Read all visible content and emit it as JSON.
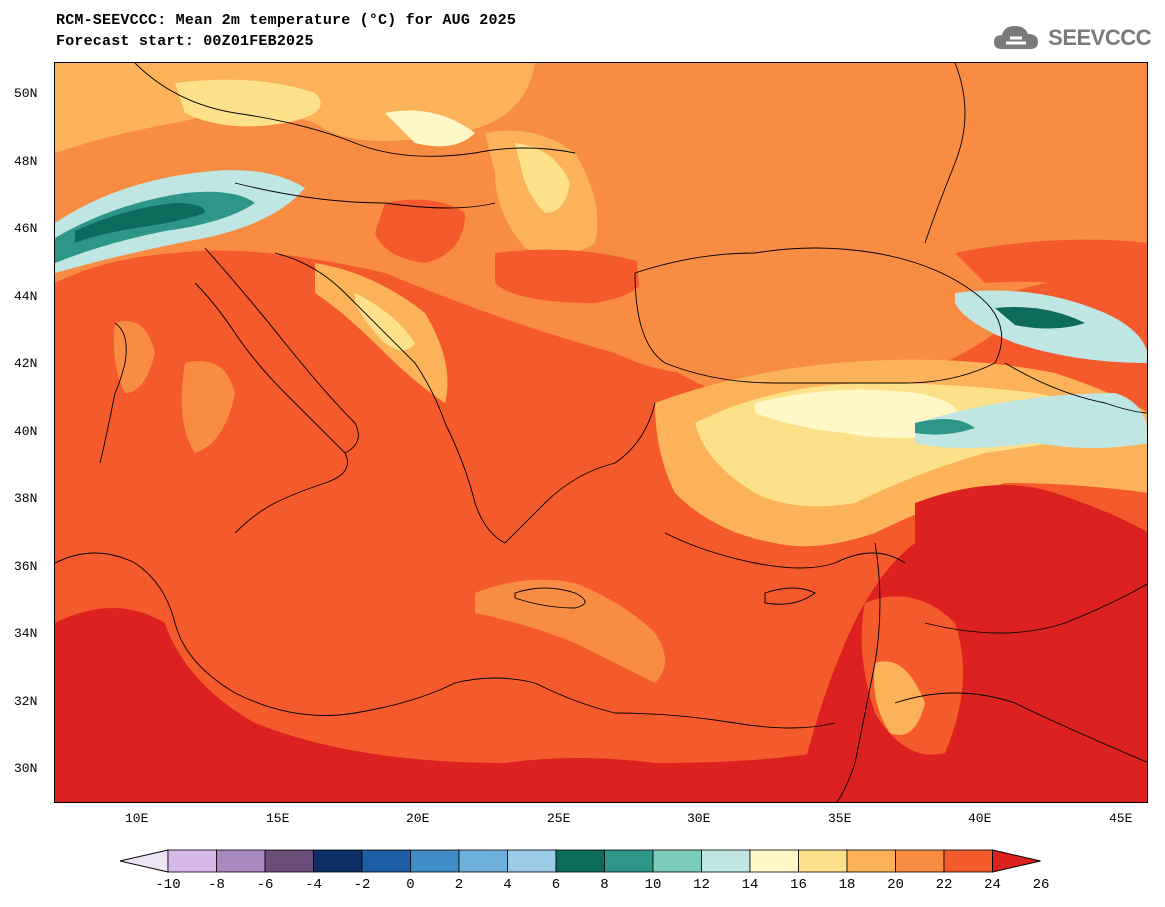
{
  "header": {
    "title_line1": "RCM-SEEVCCC: Mean 2m temperature (°C) for AUG 2025",
    "title_line2": "Forecast start: 00Z01FEB2025",
    "logo_text": "SEEVCCC"
  },
  "map": {
    "lat_labels": [
      "50N",
      "48N",
      "46N",
      "44N",
      "42N",
      "40N",
      "38N",
      "36N",
      "34N",
      "32N",
      "30N"
    ],
    "lon_labels": [
      "10E",
      "15E",
      "20E",
      "25E",
      "30E",
      "35E",
      "40E",
      "45E"
    ]
  },
  "colorbar": {
    "tick_labels": [
      "-10",
      "-8",
      "-6",
      "-4",
      "-2",
      "0",
      "2",
      "4",
      "6",
      "8",
      "10",
      "12",
      "14",
      "16",
      "18",
      "20",
      "22",
      "24",
      "26"
    ],
    "colors": [
      "#ece4f4",
      "#d8b8e6",
      "#a88ac0",
      "#6a4e78",
      "#0e2f66",
      "#1e5ea4",
      "#3f8cc6",
      "#6eb0dc",
      "#9ccbe6",
      "#0d6b5e",
      "#2e9688",
      "#7acbba",
      "#bfe6e2",
      "#fff8c6",
      "#fde08a",
      "#fbb258",
      "#f88c42",
      "#f45a2c",
      "#dc2220"
    ]
  }
}
